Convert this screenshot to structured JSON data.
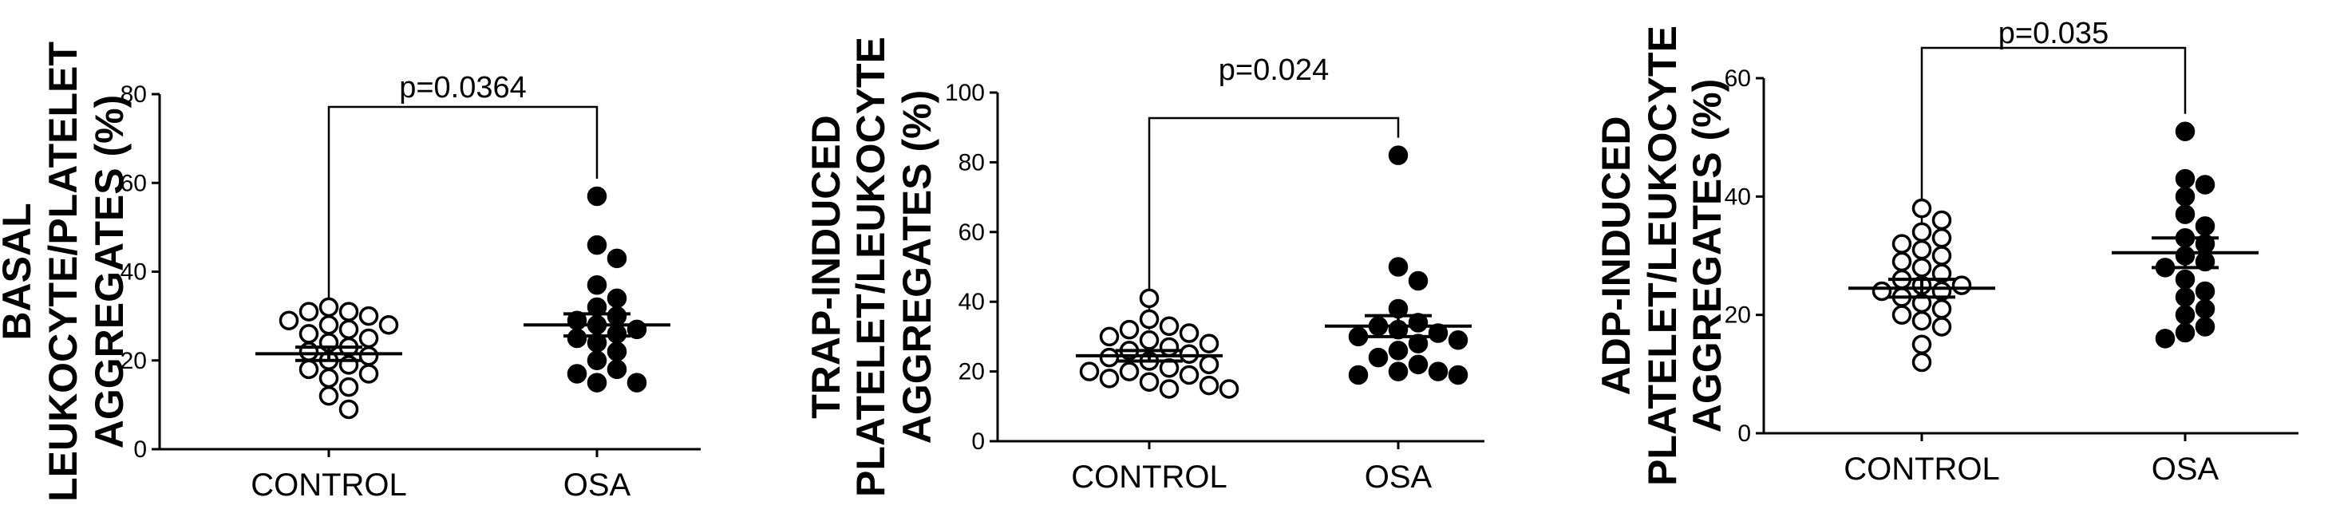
{
  "chart_data": [
    {
      "type": "scatter",
      "ylabel_lines": [
        "BASAL",
        "LEUKOCYTE/PLATELET",
        "AGGREGATES (%)"
      ],
      "ylim": [
        0,
        80
      ],
      "yticks": [
        "0",
        "20",
        "40",
        "60",
        "80"
      ],
      "categories": [
        "CONTROL",
        "OSA"
      ],
      "p_value": "p=0.0364",
      "grid": false,
      "series": [
        {
          "values": [
            32,
            31,
            31,
            30,
            29,
            28,
            28,
            27,
            26,
            25,
            24,
            23,
            22,
            21,
            20,
            19,
            18,
            17,
            16,
            14,
            12,
            9
          ],
          "mean": 21.5,
          "sem": 1.5,
          "marker": "open"
        },
        {
          "values": [
            57,
            46,
            43,
            37,
            34,
            32,
            30,
            29,
            28,
            27,
            26,
            25,
            24,
            22,
            20,
            18,
            17,
            15,
            15
          ],
          "mean": 28,
          "sem": 2.5,
          "marker": "filled"
        }
      ]
    },
    {
      "type": "scatter",
      "ylabel_lines": [
        "TRAP-INDUCED",
        "PLATELET/LEUKOCYTE",
        "AGGREGATES (%)"
      ],
      "ylim": [
        0,
        100
      ],
      "yticks": [
        "0",
        "20",
        "40",
        "60",
        "80",
        "100"
      ],
      "categories": [
        "CONTROL",
        "OSA"
      ],
      "p_value": "p=0.024",
      "grid": false,
      "series": [
        {
          "values": [
            41,
            35,
            33,
            32,
            31,
            30,
            29,
            28,
            27,
            26,
            25,
            24,
            23,
            22,
            21,
            20,
            20,
            19,
            18,
            17,
            16,
            15,
            15
          ],
          "mean": 24.5,
          "sem": 1.5,
          "marker": "open"
        },
        {
          "values": [
            82,
            50,
            46,
            38,
            34,
            33,
            32,
            31,
            30,
            29,
            28,
            26,
            24,
            22,
            20,
            20,
            19,
            19
          ],
          "mean": 33,
          "sem": 3,
          "marker": "filled"
        }
      ]
    },
    {
      "type": "scatter",
      "ylabel_lines": [
        "ADP-INDUCED",
        "PLATELET/LEUKOCYTE",
        "AGGREGATES (%)"
      ],
      "ylim": [
        0,
        60
      ],
      "yticks": [
        "0",
        "20",
        "40",
        "60"
      ],
      "categories": [
        "CONTROL",
        "OSA"
      ],
      "p_value": "p=0.035",
      "grid": false,
      "series": [
        {
          "values": [
            38,
            36,
            34,
            33,
            32,
            31,
            30,
            29,
            28,
            27,
            26,
            25,
            25,
            24,
            24,
            23,
            22,
            21,
            20,
            19,
            18,
            15,
            12
          ],
          "mean": 24.5,
          "sem": 1.5,
          "marker": "open"
        },
        {
          "values": [
            51,
            43,
            42,
            40,
            37,
            35,
            33,
            32,
            30,
            29,
            28,
            26,
            24,
            23,
            21,
            20,
            18,
            17,
            16
          ],
          "mean": 30.5,
          "sem": 2.5,
          "marker": "filled"
        }
      ]
    }
  ]
}
